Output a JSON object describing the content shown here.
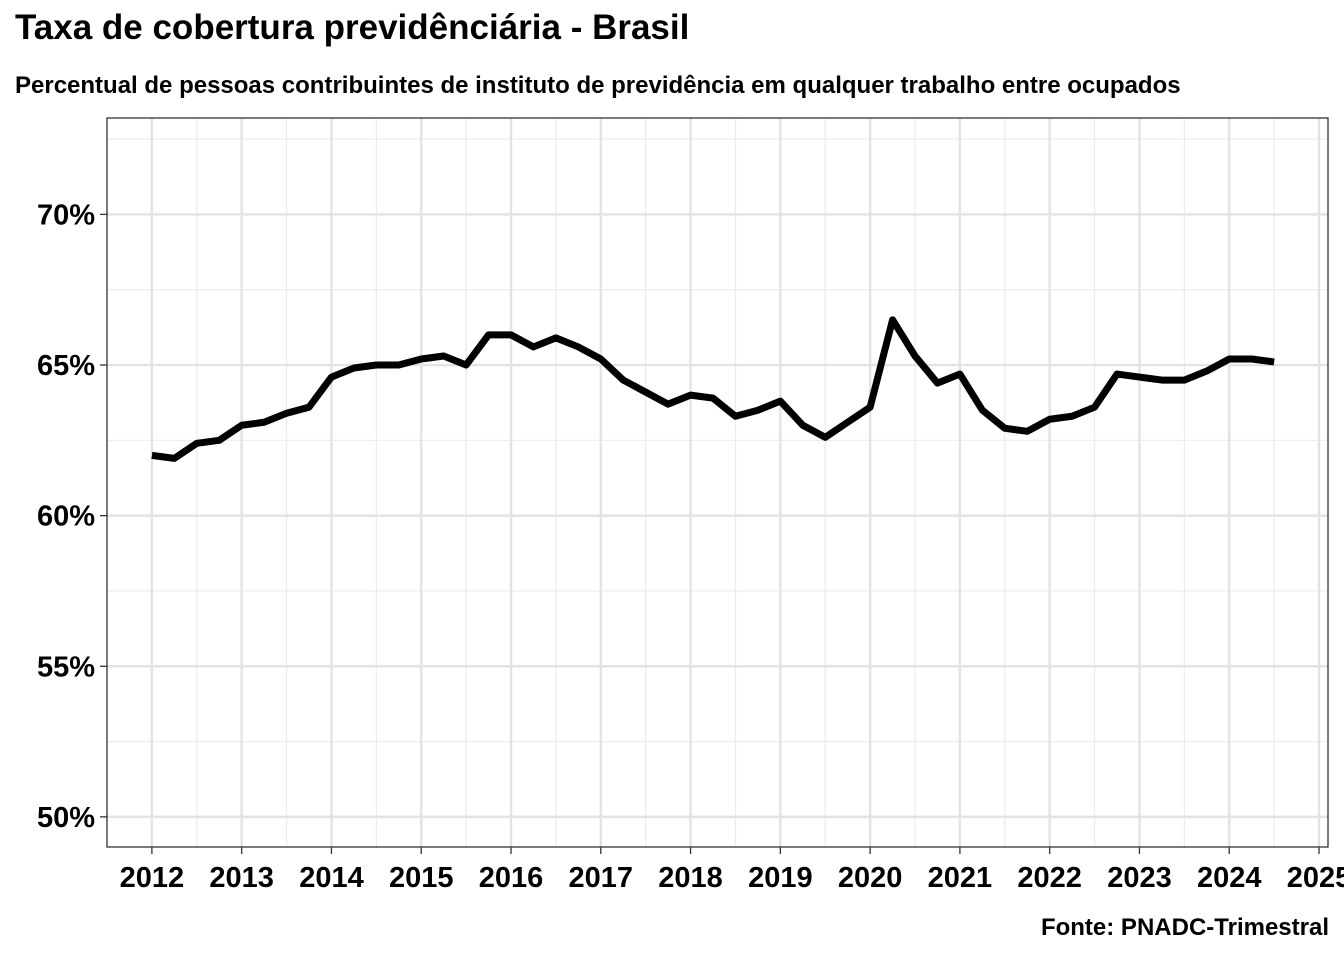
{
  "chart_data": {
    "type": "line",
    "title": "Taxa de cobertura previdênciária - Brasil",
    "subtitle": "Percentual de pessoas contribuintes de instituto de previdência em qualquer trabalho entre ocupados",
    "caption": "Fonte: PNADC-Trimestral",
    "xlabel": "",
    "ylabel": "",
    "xlim": [
      2011.5,
      2025.1
    ],
    "ylim": [
      49.0,
      73.2
    ],
    "x_ticks": [
      2012,
      2013,
      2014,
      2015,
      2016,
      2017,
      2018,
      2019,
      2020,
      2021,
      2022,
      2023,
      2024,
      2025
    ],
    "x_tick_labels": [
      "2012",
      "2013",
      "2014",
      "2015",
      "2016",
      "2017",
      "2018",
      "2019",
      "2020",
      "2021",
      "2022",
      "2023",
      "2024",
      "2025"
    ],
    "y_ticks": [
      50,
      55,
      60,
      65,
      70
    ],
    "y_tick_labels": [
      "50%",
      "55%",
      "60%",
      "65%",
      "70%"
    ],
    "grid": true,
    "legend": "none",
    "series": [
      {
        "color": "#000000",
        "x": [
          2012.0,
          2012.25,
          2012.5,
          2012.75,
          2013.0,
          2013.25,
          2013.5,
          2013.75,
          2014.0,
          2014.25,
          2014.5,
          2014.75,
          2015.0,
          2015.25,
          2015.5,
          2015.75,
          2016.0,
          2016.25,
          2016.5,
          2016.75,
          2017.0,
          2017.25,
          2017.5,
          2017.75,
          2018.0,
          2018.25,
          2018.5,
          2018.75,
          2019.0,
          2019.25,
          2019.5,
          2019.75,
          2020.0,
          2020.25,
          2020.5,
          2020.75,
          2021.0,
          2021.25,
          2021.5,
          2021.75,
          2022.0,
          2022.25,
          2022.5,
          2022.75,
          2023.0,
          2023.25,
          2023.5,
          2023.75,
          2024.0,
          2024.25,
          2024.5
        ],
        "values": [
          62.0,
          61.9,
          62.4,
          62.5,
          63.0,
          63.1,
          63.4,
          63.6,
          64.6,
          64.9,
          65.0,
          65.0,
          65.2,
          65.3,
          65.0,
          66.0,
          66.0,
          65.6,
          65.9,
          65.6,
          65.2,
          64.5,
          64.1,
          63.7,
          64.0,
          63.9,
          63.3,
          63.5,
          63.8,
          63.0,
          62.6,
          63.1,
          63.6,
          66.5,
          65.3,
          64.4,
          64.7,
          63.5,
          62.9,
          62.8,
          63.2,
          63.3,
          63.6,
          64.7,
          64.6,
          64.5,
          64.5,
          64.8,
          65.2,
          65.2,
          65.1
        ]
      }
    ]
  }
}
